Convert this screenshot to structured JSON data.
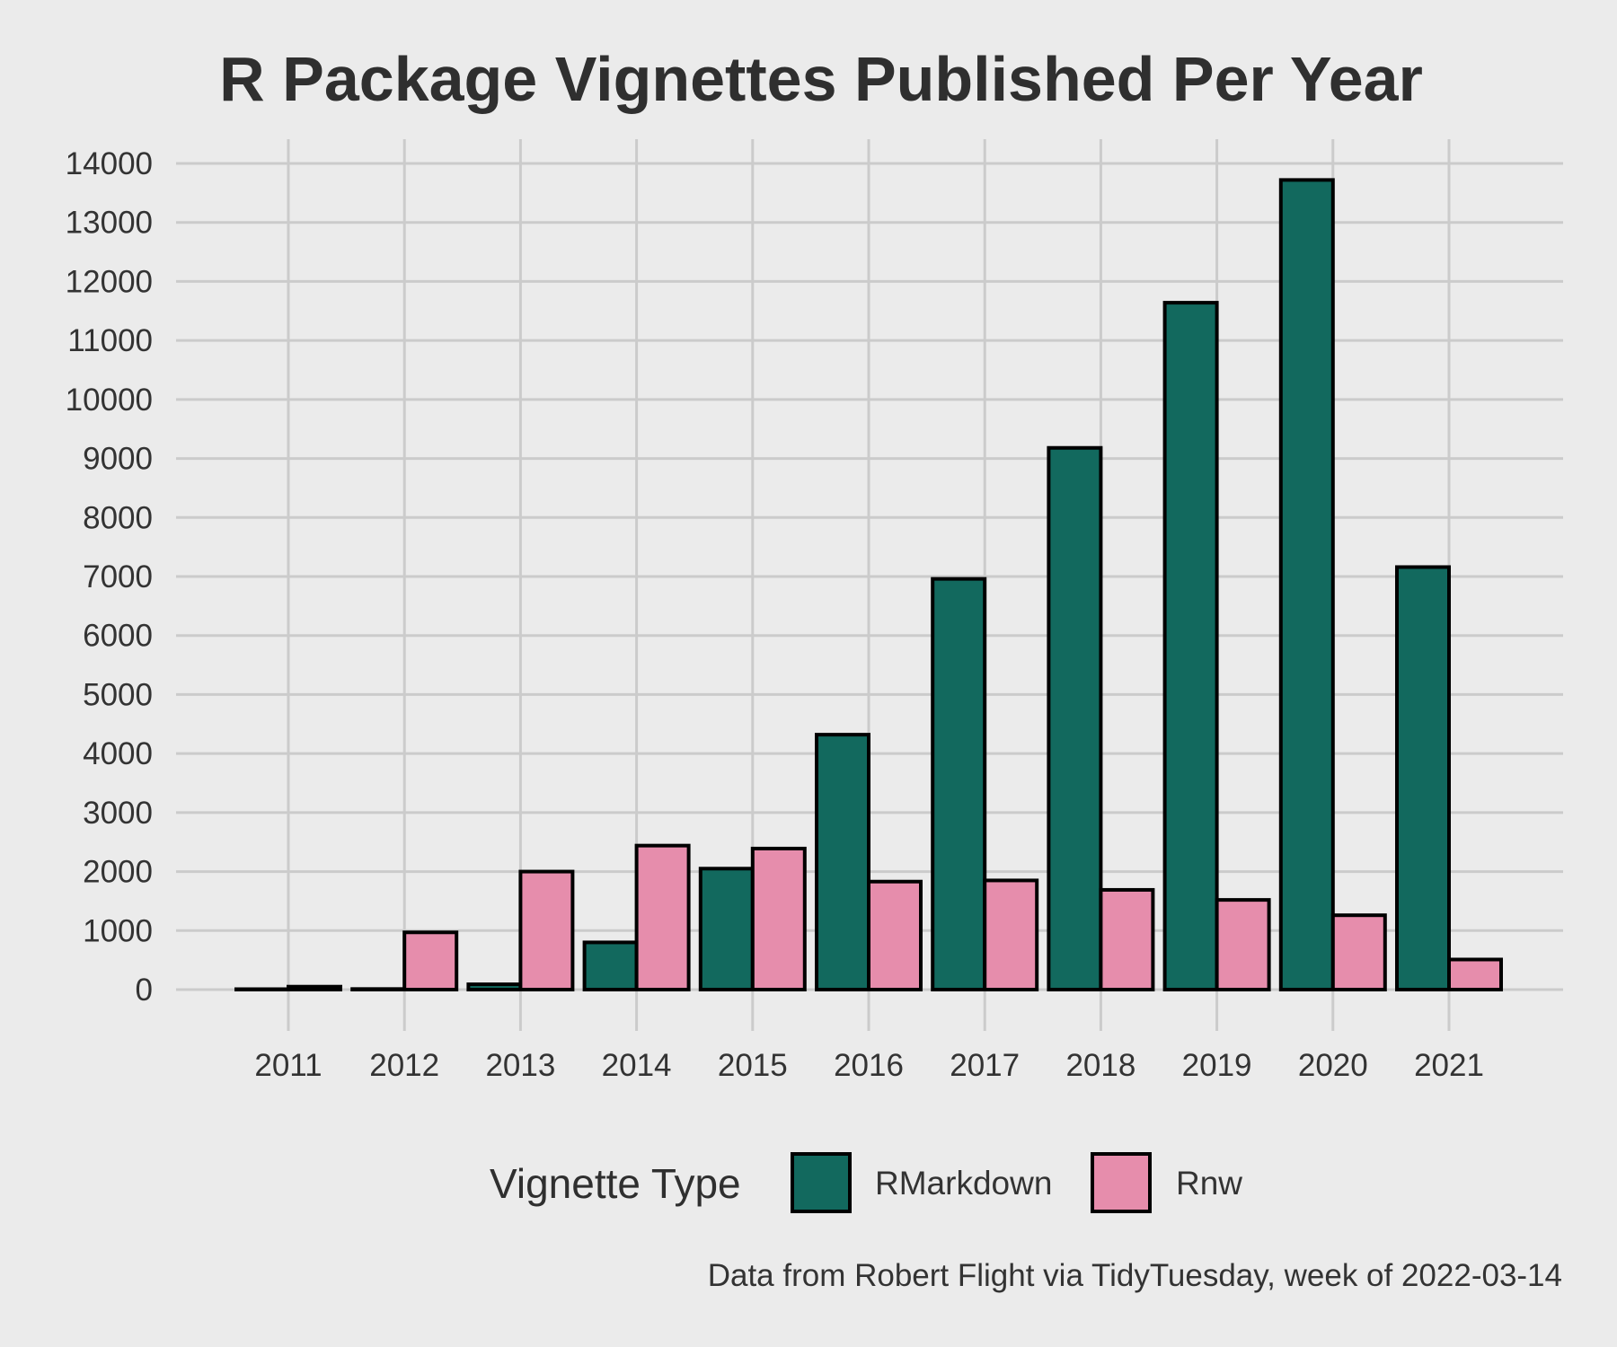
{
  "chart_data": {
    "type": "bar",
    "title": "R Package Vignettes Published Per Year",
    "xlabel": "",
    "ylabel": "",
    "categories": [
      "2011",
      "2012",
      "2013",
      "2014",
      "2015",
      "2016",
      "2017",
      "2018",
      "2019",
      "2020",
      "2021"
    ],
    "series": [
      {
        "name": "RMarkdown",
        "color": "#12695e",
        "values": [
          5,
          10,
          90,
          800,
          2050,
          4320,
          6960,
          9180,
          11640,
          13720,
          7160
        ]
      },
      {
        "name": "Rnw",
        "color": "#e68dac",
        "values": [
          50,
          970,
          2000,
          2440,
          2390,
          1830,
          1850,
          1690,
          1520,
          1260,
          510
        ]
      }
    ],
    "ylim": [
      0,
      14000
    ],
    "y_ticks": [
      "0",
      "1000",
      "2000",
      "3000",
      "4000",
      "5000",
      "6000",
      "7000",
      "8000",
      "9000",
      "10000",
      "11000",
      "12000",
      "13000",
      "14000"
    ],
    "grid": true,
    "legend": {
      "title": "Vignette Type",
      "position": "bottom"
    },
    "caption": "Data from Robert Flight via TidyTuesday, week of 2022-03-14"
  }
}
